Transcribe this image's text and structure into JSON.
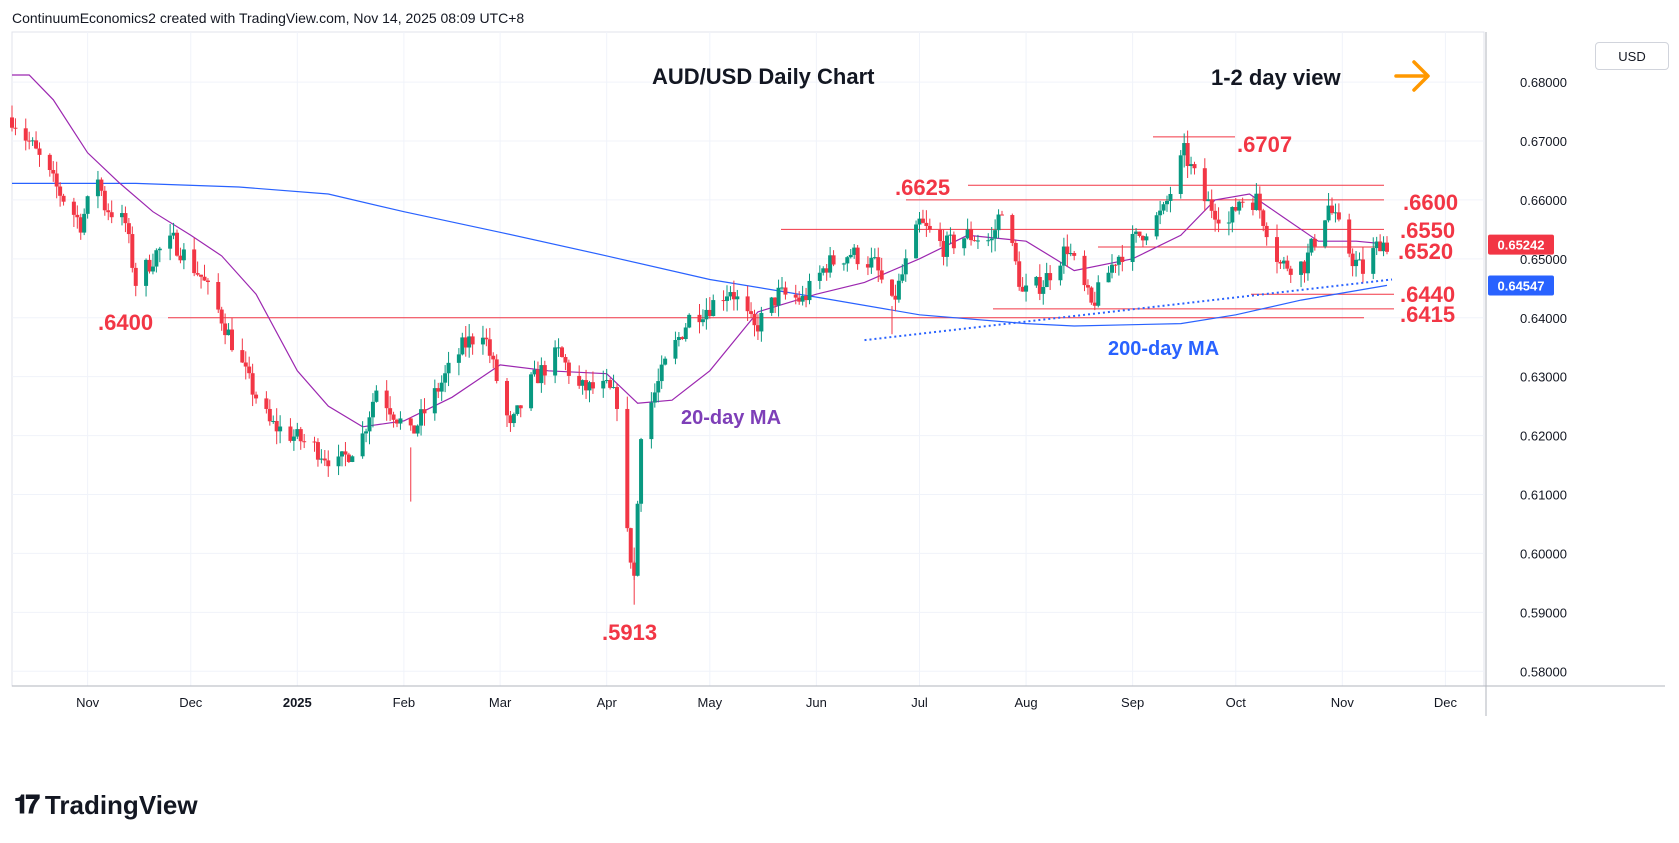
{
  "header": {
    "credit": "ContinuumEconomics2 created with TradingView.com, Nov 14, 2025 08:09 UTC+8"
  },
  "footer": {
    "brand": "TradingView"
  },
  "colors": {
    "up": "#089981",
    "down": "#f23645",
    "ma20": "#9c27b0",
    "ma200": "#2962ff",
    "level": "#f23645",
    "arrow": "#ff9800",
    "last_price_bg": "#f23645",
    "ma200_price_bg": "#2962ff"
  },
  "chart_data": {
    "type": "candlestick",
    "title": "AUD/USD Daily Chart",
    "view_label": "1-2 day view",
    "currency": "USD",
    "x_ticks": [
      "Nov",
      "Dec",
      "2025",
      "Feb",
      "Mar",
      "Apr",
      "May",
      "Jun",
      "Jul",
      "Aug",
      "Sep",
      "Oct",
      "Nov",
      "Dec"
    ],
    "y_ticks": [
      "0.68000",
      "0.67000",
      "0.66000",
      "0.65000",
      "0.64000",
      "0.63000",
      "0.62000",
      "0.61000",
      "0.60000",
      "0.59000",
      "0.58000"
    ],
    "ylim": [
      0.5775,
      0.6885
    ],
    "last_price": "0.65242",
    "ma200_price": "0.64547",
    "levels": [
      {
        "label": ".6707",
        "value": 0.6707
      },
      {
        "label": ".6625",
        "value": 0.6625
      },
      {
        "label": ".6600",
        "value": 0.66
      },
      {
        "label": ".6550",
        "value": 0.655
      },
      {
        "label": ".6520",
        "value": 0.652
      },
      {
        "label": ".6440",
        "value": 0.644
      },
      {
        "label": ".6415",
        "value": 0.6415
      },
      {
        "label": ".6400",
        "value": 0.64
      },
      {
        "label": ".5913",
        "value": 0.5913
      }
    ],
    "annotations": {
      "ma20": "20-day MA",
      "ma200": "200-day MA"
    },
    "trendline": {
      "start": [
        "2025-06-15",
        0.6362
      ],
      "end": [
        "2025-11-14",
        0.6465
      ]
    },
    "ma200_series": [
      [
        "2024-10-10",
        0.6628
      ],
      [
        "2024-11-15",
        0.6628
      ],
      [
        "2024-12-15",
        0.6622
      ],
      [
        "2025-01-10",
        0.661
      ],
      [
        "2025-02-01",
        0.658
      ],
      [
        "2025-03-01",
        0.6545
      ],
      [
        "2025-04-01",
        0.6505
      ],
      [
        "2025-05-01",
        0.6465
      ],
      [
        "2025-06-01",
        0.6435
      ],
      [
        "2025-07-01",
        0.6405
      ],
      [
        "2025-08-01",
        0.639
      ],
      [
        "2025-08-15",
        0.6386
      ],
      [
        "2025-09-15",
        0.639
      ],
      [
        "2025-10-01",
        0.6405
      ],
      [
        "2025-10-20",
        0.643
      ],
      [
        "2025-11-14",
        0.6455
      ]
    ],
    "ma20_series": [
      [
        "2024-10-10",
        0.6812
      ],
      [
        "2024-10-15",
        0.6812
      ],
      [
        "2024-10-22",
        0.677
      ],
      [
        "2024-11-01",
        0.668
      ],
      [
        "2024-11-10",
        0.663
      ],
      [
        "2024-11-20",
        0.658
      ],
      [
        "2024-12-01",
        0.654
      ],
      [
        "2024-12-10",
        0.6505
      ],
      [
        "2024-12-20",
        0.644
      ],
      [
        "2025-01-01",
        0.631
      ],
      [
        "2025-01-10",
        0.625
      ],
      [
        "2025-01-20",
        0.6215
      ],
      [
        "2025-02-01",
        0.6225
      ],
      [
        "2025-02-15",
        0.6265
      ],
      [
        "2025-03-01",
        0.632
      ],
      [
        "2025-03-15",
        0.631
      ],
      [
        "2025-04-01",
        0.6305
      ],
      [
        "2025-04-10",
        0.6255
      ],
      [
        "2025-04-20",
        0.626
      ],
      [
        "2025-05-01",
        0.631
      ],
      [
        "2025-05-15",
        0.641
      ],
      [
        "2025-06-01",
        0.644
      ],
      [
        "2025-06-15",
        0.646
      ],
      [
        "2025-07-01",
        0.65
      ],
      [
        "2025-07-15",
        0.654
      ],
      [
        "2025-08-01",
        0.653
      ],
      [
        "2025-08-15",
        0.648
      ],
      [
        "2025-09-01",
        0.65
      ],
      [
        "2025-09-15",
        0.654
      ],
      [
        "2025-09-25",
        0.66
      ],
      [
        "2025-10-05",
        0.661
      ],
      [
        "2025-10-15",
        0.657
      ],
      [
        "2025-10-25",
        0.653
      ],
      [
        "2025-11-05",
        0.653
      ],
      [
        "2025-11-14",
        0.6525
      ]
    ],
    "candle_anchors": [
      [
        "2024-10-10",
        0.674
      ],
      [
        "2024-10-16",
        0.669
      ],
      [
        "2024-10-23",
        0.662
      ],
      [
        "2024-10-30",
        0.656
      ],
      [
        "2024-11-04",
        0.664
      ],
      [
        "2024-11-06",
        0.659
      ],
      [
        "2024-11-12",
        0.656
      ],
      [
        "2024-11-15",
        0.646
      ],
      [
        "2024-11-21",
        0.651
      ],
      [
        "2024-11-26",
        0.653
      ],
      [
        "2024-12-04",
        0.647
      ],
      [
        "2024-12-10",
        0.64
      ],
      [
        "2024-12-18",
        0.629
      ],
      [
        "2024-12-24",
        0.622
      ],
      [
        "2025-01-06",
        0.618
      ],
      [
        "2025-01-13",
        0.615
      ],
      [
        "2025-01-20",
        0.62
      ],
      [
        "2025-01-24",
        0.628
      ],
      [
        "2025-02-03",
        0.62
      ],
      [
        "2025-02-10",
        0.627
      ],
      [
        "2025-02-18",
        0.635
      ],
      [
        "2025-02-24",
        0.638
      ],
      [
        "2025-03-04",
        0.621
      ],
      [
        "2025-03-10",
        0.629
      ],
      [
        "2025-03-18",
        0.634
      ],
      [
        "2025-03-24",
        0.628
      ],
      [
        "2025-04-01",
        0.628
      ],
      [
        "2025-04-04",
        0.626
      ],
      [
        "2025-04-07",
        0.603
      ],
      [
        "2025-04-09",
        0.596
      ],
      [
        "2025-04-11",
        0.621
      ],
      [
        "2025-04-18",
        0.632
      ],
      [
        "2025-04-25",
        0.64
      ],
      [
        "2025-05-01",
        0.642
      ],
      [
        "2025-05-07",
        0.645
      ],
      [
        "2025-05-14",
        0.638
      ],
      [
        "2025-05-21",
        0.644
      ],
      [
        "2025-05-28",
        0.643
      ],
      [
        "2025-06-04",
        0.649
      ],
      [
        "2025-06-11",
        0.651
      ],
      [
        "2025-06-18",
        0.649
      ],
      [
        "2025-06-23",
        0.642
      ],
      [
        "2025-07-01",
        0.656
      ],
      [
        "2025-07-08",
        0.652
      ],
      [
        "2025-07-15",
        0.654
      ],
      [
        "2025-07-22",
        0.653
      ],
      [
        "2025-07-25",
        0.659
      ],
      [
        "2025-07-31",
        0.644
      ],
      [
        "2025-08-06",
        0.646
      ],
      [
        "2025-08-13",
        0.652
      ],
      [
        "2025-08-20",
        0.642
      ],
      [
        "2025-08-27",
        0.65
      ],
      [
        "2025-09-03",
        0.654
      ],
      [
        "2025-09-10",
        0.658
      ],
      [
        "2025-09-16",
        0.668
      ],
      [
        "2025-09-22",
        0.66
      ],
      [
        "2025-09-29",
        0.656
      ],
      [
        "2025-10-02",
        0.66
      ],
      [
        "2025-10-07",
        0.66
      ],
      [
        "2025-10-14",
        0.649
      ],
      [
        "2025-10-21",
        0.649
      ],
      [
        "2025-10-28",
        0.659
      ],
      [
        "2025-11-04",
        0.65
      ],
      [
        "2025-11-07",
        0.648
      ],
      [
        "2025-11-12",
        0.653
      ],
      [
        "2025-11-14",
        0.6524
      ]
    ]
  }
}
